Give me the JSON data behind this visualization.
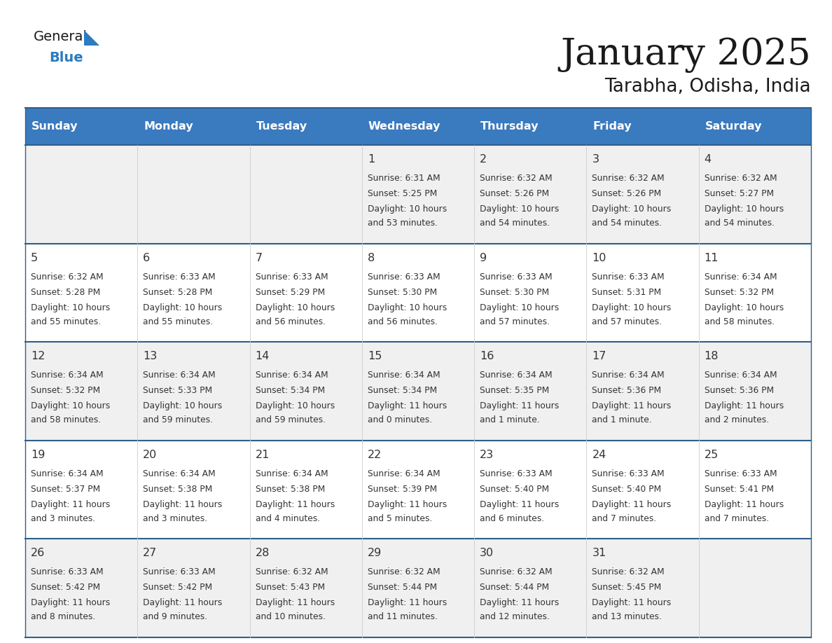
{
  "title": "January 2025",
  "subtitle": "Tarabha, Odisha, India",
  "days_of_week": [
    "Sunday",
    "Monday",
    "Tuesday",
    "Wednesday",
    "Thursday",
    "Friday",
    "Saturday"
  ],
  "header_bg": "#3a7abf",
  "header_text": "#ffffff",
  "row_bg_even": "#f0f0f0",
  "row_bg_odd": "#ffffff",
  "separator_color": "#2e5f8a",
  "text_color": "#333333",
  "calendar_data": [
    {
      "day": 1,
      "col": 3,
      "row": 0,
      "sunrise": "6:31 AM",
      "sunset": "5:25 PM",
      "daylight": "10 hours and 53 minutes."
    },
    {
      "day": 2,
      "col": 4,
      "row": 0,
      "sunrise": "6:32 AM",
      "sunset": "5:26 PM",
      "daylight": "10 hours and 54 minutes."
    },
    {
      "day": 3,
      "col": 5,
      "row": 0,
      "sunrise": "6:32 AM",
      "sunset": "5:26 PM",
      "daylight": "10 hours and 54 minutes."
    },
    {
      "day": 4,
      "col": 6,
      "row": 0,
      "sunrise": "6:32 AM",
      "sunset": "5:27 PM",
      "daylight": "10 hours and 54 minutes."
    },
    {
      "day": 5,
      "col": 0,
      "row": 1,
      "sunrise": "6:32 AM",
      "sunset": "5:28 PM",
      "daylight": "10 hours and 55 minutes."
    },
    {
      "day": 6,
      "col": 1,
      "row": 1,
      "sunrise": "6:33 AM",
      "sunset": "5:28 PM",
      "daylight": "10 hours and 55 minutes."
    },
    {
      "day": 7,
      "col": 2,
      "row": 1,
      "sunrise": "6:33 AM",
      "sunset": "5:29 PM",
      "daylight": "10 hours and 56 minutes."
    },
    {
      "day": 8,
      "col": 3,
      "row": 1,
      "sunrise": "6:33 AM",
      "sunset": "5:30 PM",
      "daylight": "10 hours and 56 minutes."
    },
    {
      "day": 9,
      "col": 4,
      "row": 1,
      "sunrise": "6:33 AM",
      "sunset": "5:30 PM",
      "daylight": "10 hours and 57 minutes."
    },
    {
      "day": 10,
      "col": 5,
      "row": 1,
      "sunrise": "6:33 AM",
      "sunset": "5:31 PM",
      "daylight": "10 hours and 57 minutes."
    },
    {
      "day": 11,
      "col": 6,
      "row": 1,
      "sunrise": "6:34 AM",
      "sunset": "5:32 PM",
      "daylight": "10 hours and 58 minutes."
    },
    {
      "day": 12,
      "col": 0,
      "row": 2,
      "sunrise": "6:34 AM",
      "sunset": "5:32 PM",
      "daylight": "10 hours and 58 minutes."
    },
    {
      "day": 13,
      "col": 1,
      "row": 2,
      "sunrise": "6:34 AM",
      "sunset": "5:33 PM",
      "daylight": "10 hours and 59 minutes."
    },
    {
      "day": 14,
      "col": 2,
      "row": 2,
      "sunrise": "6:34 AM",
      "sunset": "5:34 PM",
      "daylight": "10 hours and 59 minutes."
    },
    {
      "day": 15,
      "col": 3,
      "row": 2,
      "sunrise": "6:34 AM",
      "sunset": "5:34 PM",
      "daylight": "11 hours and 0 minutes."
    },
    {
      "day": 16,
      "col": 4,
      "row": 2,
      "sunrise": "6:34 AM",
      "sunset": "5:35 PM",
      "daylight": "11 hours and 1 minute."
    },
    {
      "day": 17,
      "col": 5,
      "row": 2,
      "sunrise": "6:34 AM",
      "sunset": "5:36 PM",
      "daylight": "11 hours and 1 minute."
    },
    {
      "day": 18,
      "col": 6,
      "row": 2,
      "sunrise": "6:34 AM",
      "sunset": "5:36 PM",
      "daylight": "11 hours and 2 minutes."
    },
    {
      "day": 19,
      "col": 0,
      "row": 3,
      "sunrise": "6:34 AM",
      "sunset": "5:37 PM",
      "daylight": "11 hours and 3 minutes."
    },
    {
      "day": 20,
      "col": 1,
      "row": 3,
      "sunrise": "6:34 AM",
      "sunset": "5:38 PM",
      "daylight": "11 hours and 3 minutes."
    },
    {
      "day": 21,
      "col": 2,
      "row": 3,
      "sunrise": "6:34 AM",
      "sunset": "5:38 PM",
      "daylight": "11 hours and 4 minutes."
    },
    {
      "day": 22,
      "col": 3,
      "row": 3,
      "sunrise": "6:34 AM",
      "sunset": "5:39 PM",
      "daylight": "11 hours and 5 minutes."
    },
    {
      "day": 23,
      "col": 4,
      "row": 3,
      "sunrise": "6:33 AM",
      "sunset": "5:40 PM",
      "daylight": "11 hours and 6 minutes."
    },
    {
      "day": 24,
      "col": 5,
      "row": 3,
      "sunrise": "6:33 AM",
      "sunset": "5:40 PM",
      "daylight": "11 hours and 7 minutes."
    },
    {
      "day": 25,
      "col": 6,
      "row": 3,
      "sunrise": "6:33 AM",
      "sunset": "5:41 PM",
      "daylight": "11 hours and 7 minutes."
    },
    {
      "day": 26,
      "col": 0,
      "row": 4,
      "sunrise": "6:33 AM",
      "sunset": "5:42 PM",
      "daylight": "11 hours and 8 minutes."
    },
    {
      "day": 27,
      "col": 1,
      "row": 4,
      "sunrise": "6:33 AM",
      "sunset": "5:42 PM",
      "daylight": "11 hours and 9 minutes."
    },
    {
      "day": 28,
      "col": 2,
      "row": 4,
      "sunrise": "6:32 AM",
      "sunset": "5:43 PM",
      "daylight": "11 hours and 10 minutes."
    },
    {
      "day": 29,
      "col": 3,
      "row": 4,
      "sunrise": "6:32 AM",
      "sunset": "5:44 PM",
      "daylight": "11 hours and 11 minutes."
    },
    {
      "day": 30,
      "col": 4,
      "row": 4,
      "sunrise": "6:32 AM",
      "sunset": "5:44 PM",
      "daylight": "11 hours and 12 minutes."
    },
    {
      "day": 31,
      "col": 5,
      "row": 4,
      "sunrise": "6:32 AM",
      "sunset": "5:45 PM",
      "daylight": "11 hours and 13 minutes."
    }
  ],
  "num_rows": 5,
  "logo_text_general": "General",
  "logo_text_blue": "Blue",
  "logo_triangle_color": "#2b7bbf",
  "logo_general_color": "#1a1a1a",
  "title_color": "#1a1a1a",
  "subtitle_color": "#1a1a1a"
}
